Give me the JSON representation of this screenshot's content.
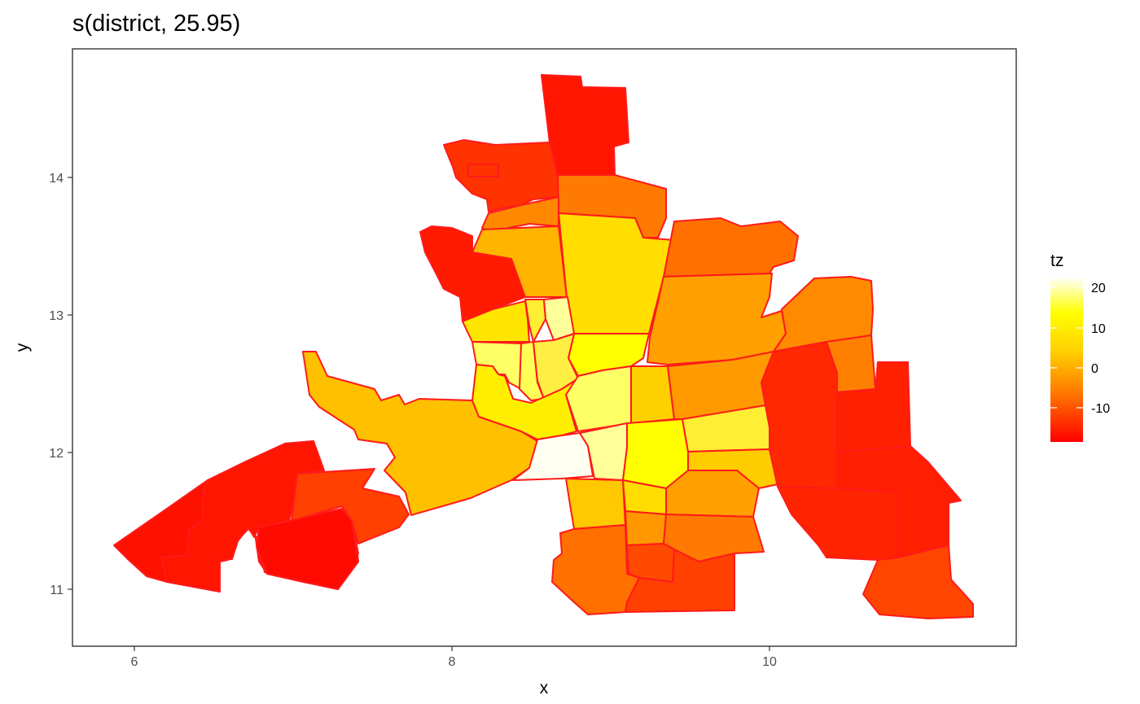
{
  "title": "s(district, 25.95)",
  "axes": {
    "xlabel": "x",
    "ylabel": "y",
    "xticks": [
      "6",
      "8",
      "10"
    ],
    "yticks": [
      "11",
      "12",
      "13",
      "14"
    ]
  },
  "legend": {
    "title": "tz",
    "ticks": [
      "20",
      "10",
      "0",
      "-10"
    ]
  },
  "colors": {
    "border": "#ff1a1a",
    "scale_low": "#ff0000",
    "scale_mid": "#ffff00",
    "scale_high": "#ffffff"
  },
  "chart_data": {
    "type": "choropleth",
    "xlim": [
      5.6,
      11.55
    ],
    "ylim": [
      10.6,
      14.95
    ],
    "grid": false,
    "legend_placement": "right",
    "fill_scale": {
      "variable": "tz",
      "min": -19,
      "max": 23
    }
  }
}
